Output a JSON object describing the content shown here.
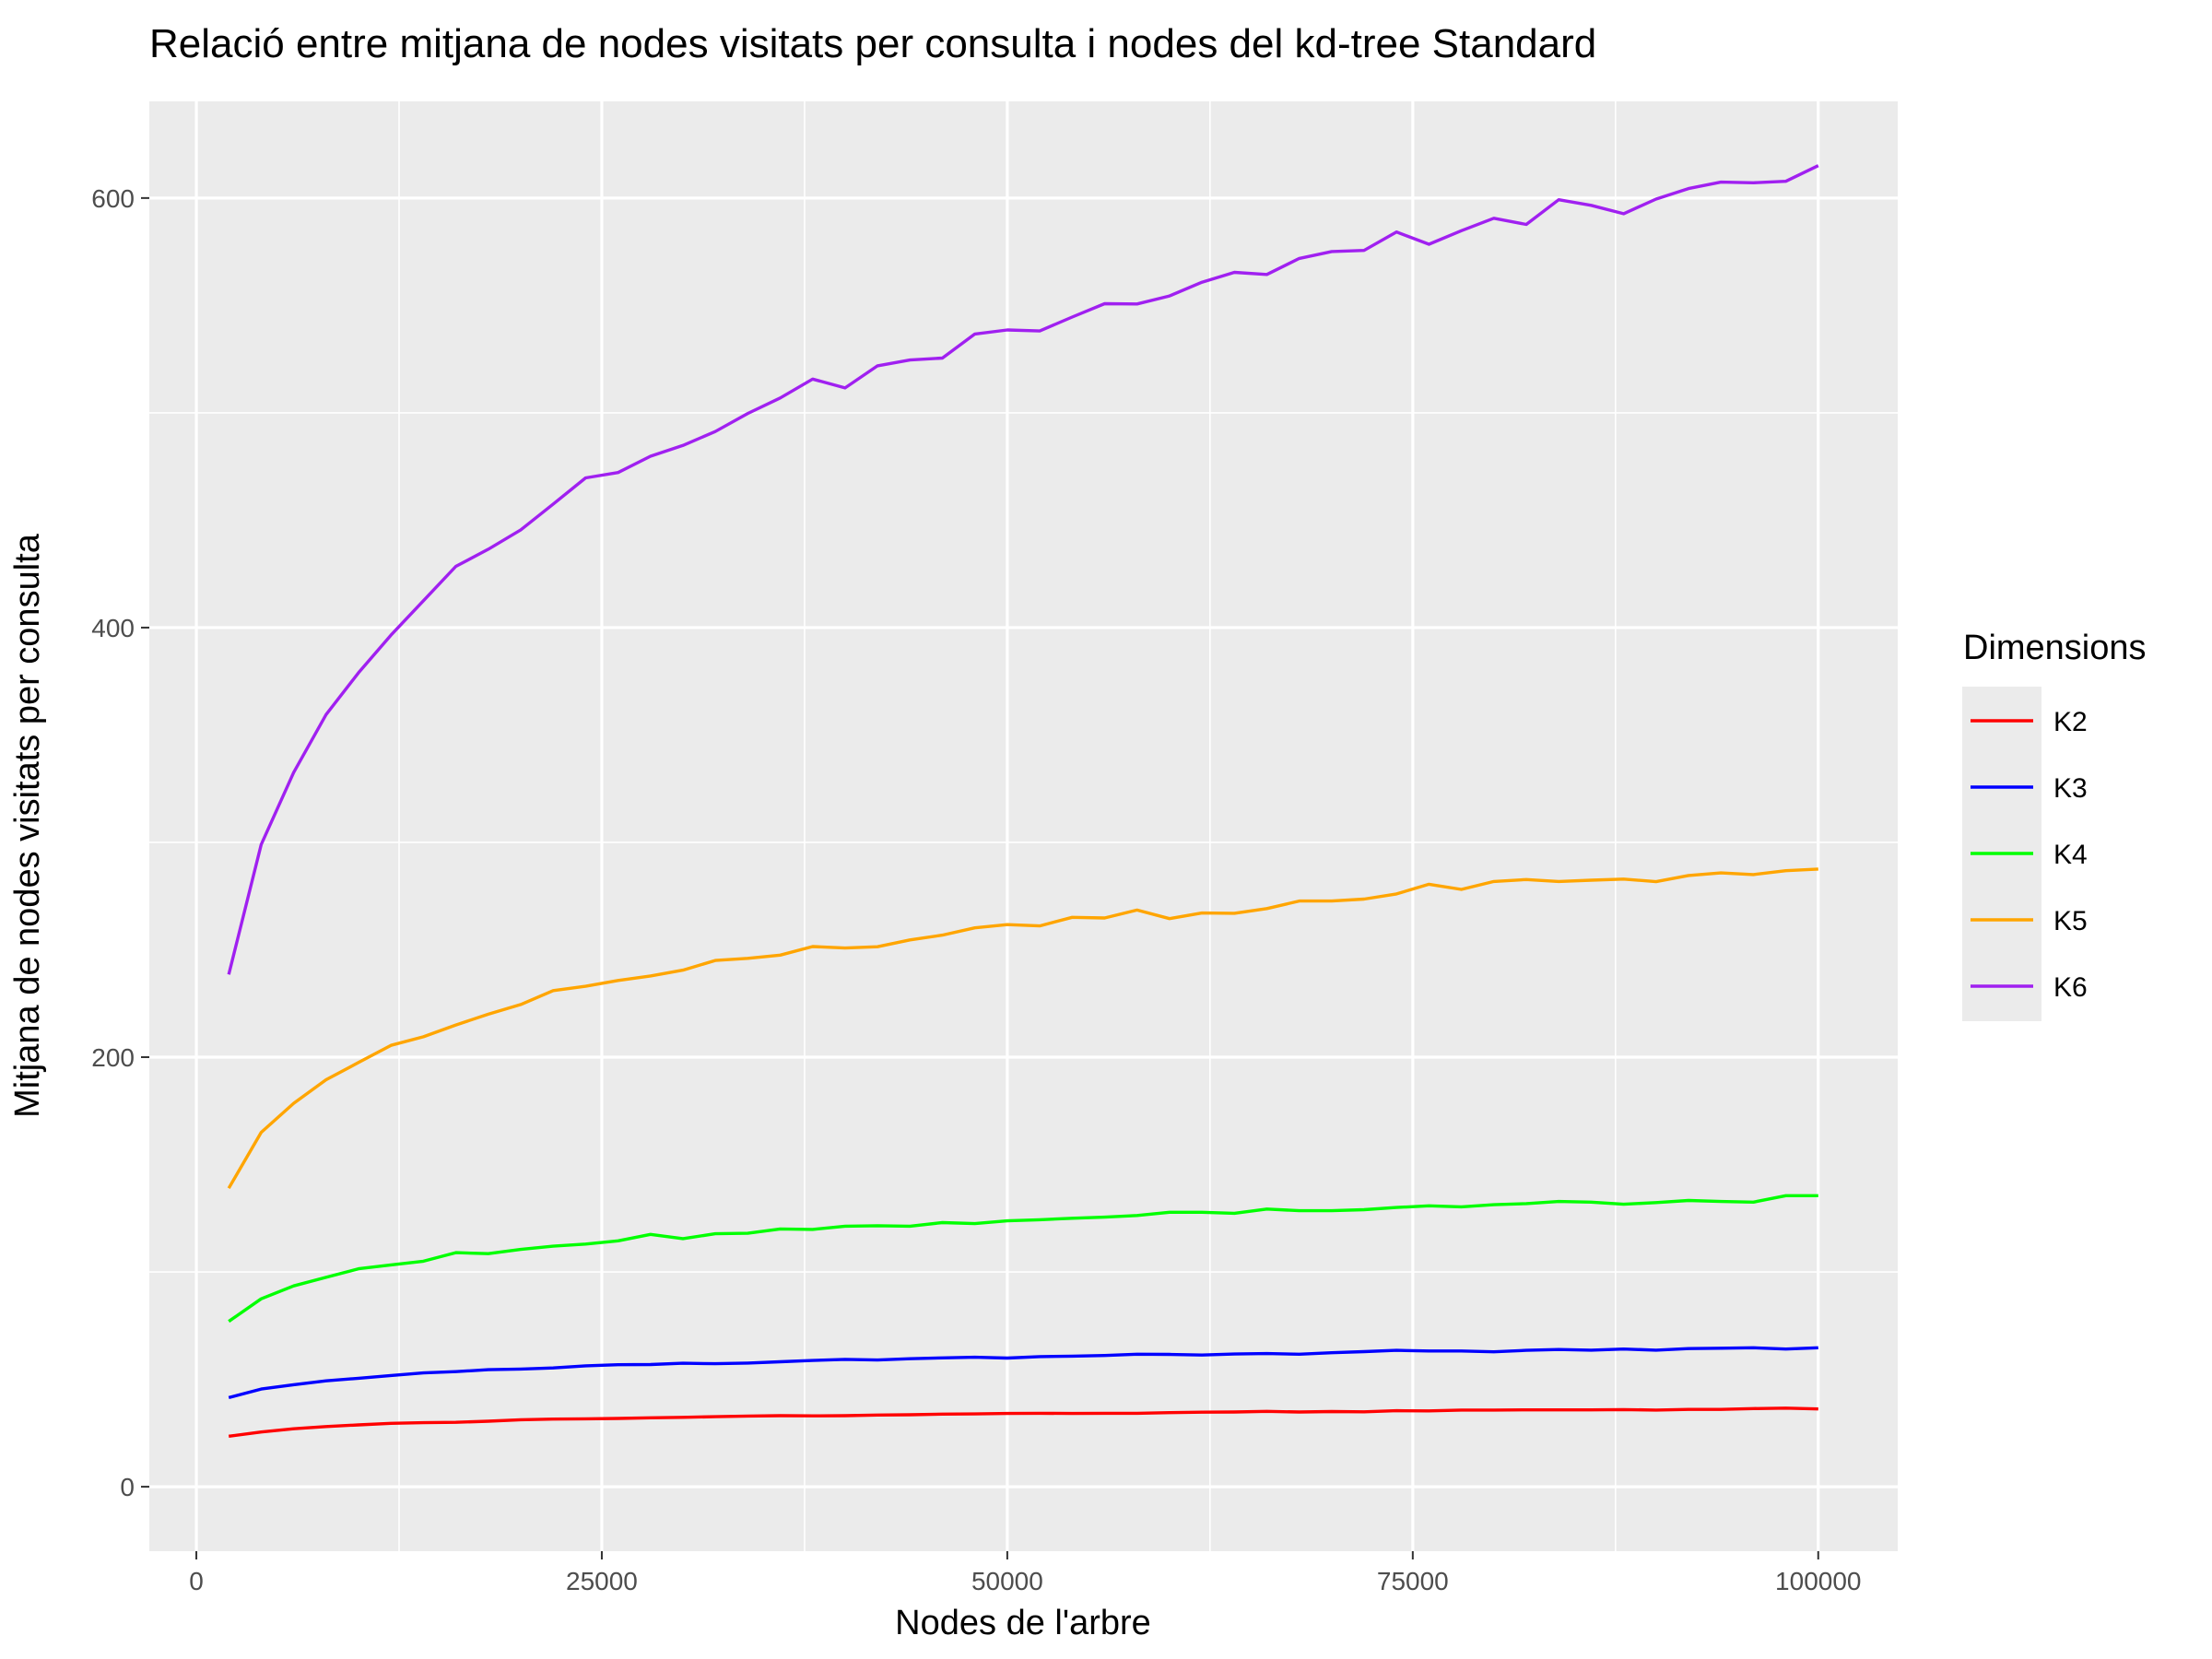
{
  "chart_data": {
    "type": "line",
    "title": "Relació entre mitjana de nodes visitats per consulta i nodes del kd-tree Standard",
    "xlabel": "Nodes de l'arbre",
    "ylabel": "Mitjana de nodes visitats per consulta",
    "xlim": [
      -2900,
      104900
    ],
    "ylim": [
      -30,
      645
    ],
    "x_ticks": [
      0,
      25000,
      50000,
      75000,
      100000
    ],
    "x_tick_labels": [
      "0",
      "25000",
      "50000",
      "75000",
      "100000"
    ],
    "y_ticks": [
      0,
      200,
      400,
      600
    ],
    "y_tick_labels": [
      "0",
      "200",
      "400",
      "600"
    ],
    "y_minor_ticks": [
      100,
      300,
      500
    ],
    "x_minor_ticks": [
      12500,
      37500,
      62500,
      87500
    ],
    "grid": true,
    "legend": {
      "title": "Dimensions",
      "position": "right"
    },
    "x": [
      2000,
      4000,
      6000,
      8000,
      10000,
      12000,
      14000,
      16000,
      18000,
      20000,
      22000,
      24000,
      26000,
      28000,
      30000,
      32000,
      34000,
      36000,
      38000,
      40000,
      42000,
      44000,
      46000,
      48000,
      50000,
      52000,
      54000,
      56000,
      58000,
      60000,
      62000,
      64000,
      66000,
      68000,
      70000,
      72000,
      74000,
      76000,
      78000,
      80000,
      82000,
      84000,
      86000,
      88000,
      90000,
      92000,
      94000,
      96000,
      98000,
      100000
    ],
    "series": [
      {
        "name": "K2",
        "color": "#ff0000",
        "values": [
          23.5,
          25.5,
          27,
          28,
          28.8,
          29.5,
          29.8,
          30,
          30.5,
          31.2,
          31.5,
          31.6,
          31.8,
          32.1,
          32.3,
          32.6,
          32.9,
          33.1,
          33,
          33.1,
          33.4,
          33.5,
          33.8,
          33.9,
          34.1,
          34.2,
          34.1,
          34.2,
          34.2,
          34.5,
          34.7,
          34.8,
          35.1,
          34.8,
          35,
          34.9,
          35.4,
          35.3,
          35.7,
          35.7,
          35.8,
          35.8,
          35.8,
          35.9,
          35.7,
          36,
          36,
          36.4,
          36.6,
          36.2
        ]
      },
      {
        "name": "K3",
        "color": "#0000ff",
        "values": [
          41.5,
          45.5,
          47.5,
          49.3,
          50.5,
          51.8,
          53,
          53.6,
          54.5,
          54.8,
          55.3,
          56.3,
          56.8,
          56.9,
          57.5,
          57.3,
          57.6,
          58.2,
          58.8,
          59.3,
          59,
          59.6,
          60,
          60.3,
          59.9,
          60.6,
          60.8,
          61.1,
          61.7,
          61.6,
          61.3,
          61.8,
          62,
          61.7,
          62.4,
          62.9,
          63.5,
          63.2,
          63.2,
          62.8,
          63.5,
          63.9,
          63.6,
          64.1,
          63.6,
          64.3,
          64.5,
          64.7,
          64.1,
          64.7
        ]
      },
      {
        "name": "K4",
        "color": "#00ff00",
        "values": [
          77,
          87.5,
          93.5,
          97.5,
          101.5,
          103.3,
          105,
          109,
          108.5,
          110.5,
          112,
          113,
          114.5,
          117.5,
          115.5,
          117.8,
          118,
          120,
          119.8,
          121.3,
          121.5,
          121.3,
          123,
          122.5,
          123.8,
          124.3,
          125,
          125.5,
          126.3,
          127.8,
          127.8,
          127.3,
          129.3,
          128.5,
          128.5,
          129,
          130,
          130.8,
          130.3,
          131.3,
          131.8,
          132.8,
          132.5,
          131.5,
          132.3,
          133.3,
          132.8,
          132.5,
          135.5,
          135.5
        ]
      },
      {
        "name": "K5",
        "color": "#ffa500",
        "values": [
          139,
          165,
          178.5,
          189.5,
          197.5,
          205.5,
          209.5,
          215,
          220,
          224.5,
          231,
          233,
          235.7,
          237.8,
          240.5,
          245,
          246,
          247.5,
          251.5,
          250.8,
          251.4,
          254.6,
          256.8,
          260.2,
          261.7,
          261.1,
          265.1,
          264.8,
          268.5,
          264.5,
          267.1,
          267,
          269.2,
          272.7,
          272.7,
          273.6,
          276,
          280.5,
          278.1,
          281.8,
          282.7,
          281.8,
          282.4,
          282.9,
          281.7,
          284.6,
          285.8,
          285,
          286.8,
          287.6
        ]
      },
      {
        "name": "K6",
        "color": "#a020f0",
        "values": [
          238.5,
          299,
          332.5,
          359.5,
          379,
          396.5,
          412.5,
          428.5,
          436.5,
          445.5,
          457.5,
          469.7,
          472.2,
          479.8,
          484.8,
          491.3,
          499.7,
          506.9,
          515.7,
          511.6,
          521.9,
          524.6,
          525.5,
          536.7,
          538.6,
          538.1,
          544.6,
          550.8,
          550.7,
          554.4,
          560.8,
          565.4,
          564.4,
          571.9,
          575.1,
          575.6,
          584.2,
          578.5,
          584.8,
          590.6,
          587.7,
          599.2,
          596.6,
          592.7,
          599.5,
          604.4,
          607.4,
          607.1,
          607.8,
          615.1
        ]
      }
    ]
  }
}
